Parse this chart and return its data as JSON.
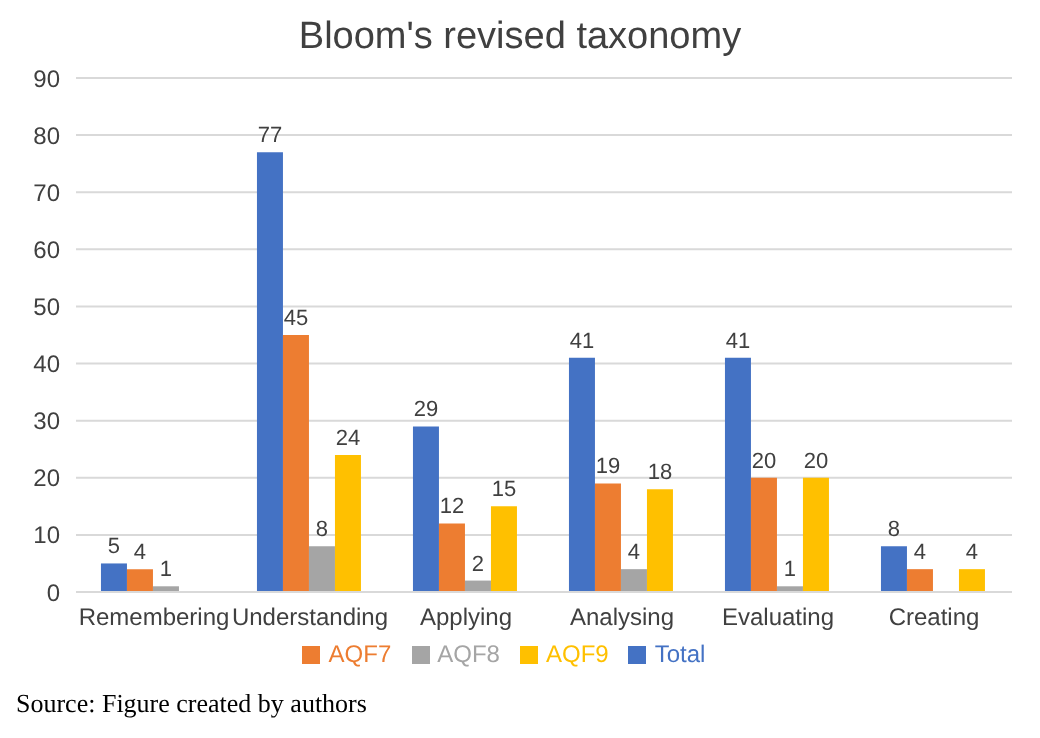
{
  "chart_data": {
    "type": "bar",
    "title": "Bloom's revised taxonomy",
    "categories": [
      "Remembering",
      "Understanding",
      "Applying",
      "Analysing",
      "Evaluating",
      "Creating"
    ],
    "series": [
      {
        "name": "Total",
        "color": "#4472c4",
        "values": [
          5,
          77,
          29,
          41,
          41,
          8
        ]
      },
      {
        "name": "AQF7",
        "color": "#ed7d31",
        "values": [
          4,
          45,
          12,
          19,
          20,
          4
        ]
      },
      {
        "name": "AQF8",
        "color": "#a5a5a5",
        "values": [
          1,
          8,
          2,
          4,
          1,
          null
        ]
      },
      {
        "name": "AQF9",
        "color": "#ffc000",
        "values": [
          null,
          24,
          15,
          18,
          20,
          4
        ]
      }
    ],
    "ylim": [
      0,
      90
    ],
    "yticks": [
      0,
      10,
      20,
      30,
      40,
      50,
      60,
      70,
      80,
      90
    ],
    "grid": "y",
    "legend": "bottom",
    "data_labels": true,
    "annotations": [
      "Source: Figure created by authors"
    ]
  }
}
